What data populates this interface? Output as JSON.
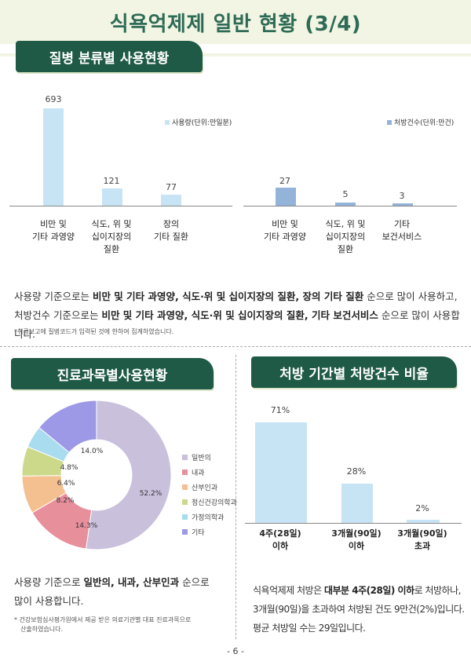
{
  "title": "식욕억제제 일반 현황 (3/4)",
  "section1": {
    "header": "질병 분류별 사용현황",
    "chart_data": [
      {
        "type": "bar",
        "legend": "사용량(단위:만일분)",
        "values": [
          693,
          121,
          77
        ],
        "value_labels": [
          "693",
          "121",
          "77"
        ],
        "categories": [
          [
            "비만 및",
            "기타 과영양"
          ],
          [
            "식도, 위 및",
            "십이지장의",
            "질환"
          ],
          [
            "장의",
            "기타 질환"
          ]
        ],
        "colors": [
          "#c7e4f5"
        ]
      },
      {
        "type": "bar",
        "legend": "처방건수(단위:만건)",
        "values": [
          27,
          5,
          3
        ],
        "value_labels": [
          "27",
          "5",
          "3"
        ],
        "categories": [
          [
            "비만 및",
            "기타 과영양"
          ],
          [
            "식도, 위 및",
            "십이지장의",
            "질환"
          ],
          [
            "기타",
            "보건서비스"
          ]
        ],
        "colors": [
          "#93b3d9"
        ]
      }
    ],
    "text1_pre": "사용량 기준으로는 ",
    "text1_b1": "비만 및 기타 과영양, 식도·위 및 십이지장의 질환, 장의 기타 질환",
    "text1_post": " 순으로 많이 사용하고,",
    "text2_pre": "처방건수 기준으로는 ",
    "text2_b1": "비만 및 기타 과영양, 식도·위 및 십이지장의 질환, 기타 보건서비스",
    "text2_post": " 순으로 많이 사용합니다.",
    "note": "*취급보고에 질병코드가 입력된 것에 한하여 집계하였습니다."
  },
  "section2": {
    "header": "진료과목별사용현황",
    "chart_data": {
      "type": "pie",
      "slices": [
        {
          "label": "일반의",
          "value": 52.2,
          "value_label": "52.2%",
          "color": "#c9c0dc"
        },
        {
          "label": "내과",
          "value": 14.3,
          "value_label": "14.3%",
          "color": "#e88f9c"
        },
        {
          "label": "산부인과",
          "value": 8.2,
          "value_label": "8.2%",
          "color": "#f5c08f"
        },
        {
          "label": "정신건강의학과",
          "value": 6.4,
          "value_label": "6.4%",
          "color": "#cdd98a"
        },
        {
          "label": "가정의학과",
          "value": 4.8,
          "value_label": "4.8%",
          "color": "#a9dcef"
        },
        {
          "label": "기타",
          "value": 14.0,
          "value_label": "14.0%",
          "color": "#9d99e6"
        }
      ]
    },
    "text_pre": "사용량 기준으로 ",
    "text_b": "일반의, 내과, 산부인과",
    "text_post": " 순으로",
    "text_line2": "많이 사용합니다.",
    "note_line1": "* 건강보험심사평가원에서 제공 받은 의료기관별 대표 진료과목으로",
    "note_line2": "산출하였습니다."
  },
  "section3": {
    "header": "처방 기간별 처방건수 비율",
    "chart_data": {
      "type": "bar",
      "values": [
        71,
        28,
        2
      ],
      "value_labels": [
        "71%",
        "28%",
        "2%"
      ],
      "categories": [
        [
          "4주(28일)",
          "이하"
        ],
        [
          "3개월(90일)",
          "이하"
        ],
        [
          "3개월(90일)",
          "초과"
        ]
      ],
      "colors": [
        "#c7e4f5"
      ]
    },
    "text_line1_pre": "식욕억제제 처방은 ",
    "text_line1_b": "대부분 4주(28일) 이하",
    "text_line1_post": "로 처방하나,",
    "text_line2": "3개월(90일)을 초과하여 처방된 건도 9만건(2%)입니다.",
    "text_line3": "평균 처방일 수는 29일입니다."
  },
  "page_number": "- 6 -"
}
